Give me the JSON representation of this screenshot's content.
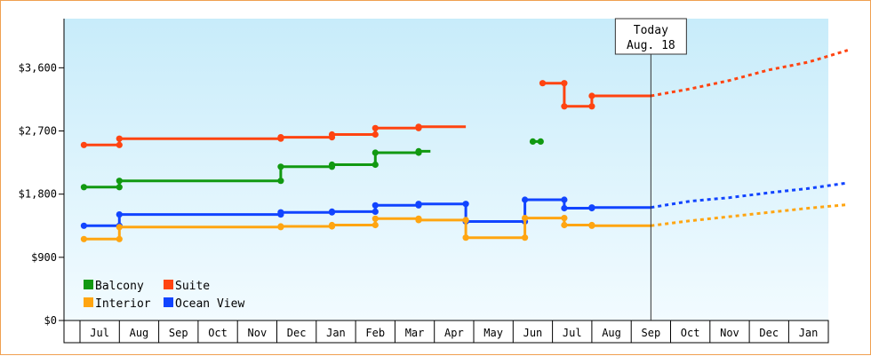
{
  "chart_data": {
    "type": "line",
    "title": "",
    "xlabel": "",
    "ylabel": "",
    "ylim": [
      0,
      4300
    ],
    "y_ticks": [
      0,
      900,
      1800,
      2700,
      3600
    ],
    "y_tick_labels": [
      "$0",
      "$900",
      "$1,800",
      "$2,700",
      "$3,600"
    ],
    "x_tick_labels": [
      "Jul",
      "Aug",
      "Sep",
      "Oct",
      "Nov",
      "Dec",
      "Jan",
      "Feb",
      "Mar",
      "Apr",
      "May",
      "Jun",
      "Jul",
      "Aug",
      "Sep",
      "Oct",
      "Nov",
      "Dec",
      "Jan"
    ],
    "today_marker": {
      "line1": "Today",
      "line2": "Aug. 18",
      "x": 14.0
    },
    "grid": false,
    "legend_position": "bottom-left",
    "series": [
      {
        "name": "Balcony",
        "color": "#119911",
        "points": [
          [
            -0.4,
            1900
          ],
          [
            0.5,
            1900
          ],
          [
            0.5,
            1990
          ],
          [
            4.6,
            1990
          ],
          [
            4.6,
            2190
          ],
          [
            5.9,
            2190
          ],
          [
            5.9,
            2220
          ],
          [
            7.0,
            2220
          ],
          [
            7.0,
            2390
          ],
          [
            8.1,
            2390
          ],
          [
            8.1,
            2410
          ],
          [
            8.4,
            2410
          ]
        ],
        "gaps": [
          [
            11.0,
            2550
          ],
          [
            11.2,
            2550
          ]
        ]
      },
      {
        "name": "Suite",
        "color": "#ff4411",
        "points": [
          [
            -0.4,
            2500
          ],
          [
            0.5,
            2500
          ],
          [
            0.5,
            2590
          ],
          [
            4.6,
            2590
          ],
          [
            4.6,
            2610
          ],
          [
            5.9,
            2610
          ],
          [
            5.9,
            2650
          ],
          [
            7.0,
            2650
          ],
          [
            7.0,
            2740
          ],
          [
            8.1,
            2740
          ],
          [
            8.1,
            2760
          ],
          [
            9.3,
            2760
          ]
        ],
        "segment2": [
          [
            11.25,
            3380
          ],
          [
            11.8,
            3380
          ],
          [
            11.8,
            3050
          ],
          [
            12.5,
            3050
          ],
          [
            12.5,
            3200
          ],
          [
            14.0,
            3200
          ]
        ],
        "forecast": [
          [
            14.0,
            3200
          ],
          [
            15.0,
            3300
          ],
          [
            16.0,
            3420
          ],
          [
            17.0,
            3570
          ],
          [
            18.0,
            3680
          ],
          [
            19.0,
            3850
          ]
        ]
      },
      {
        "name": "Ocean View",
        "color": "#1144ff",
        "points": [
          [
            -0.4,
            1350
          ],
          [
            0.5,
            1350
          ],
          [
            0.5,
            1510
          ],
          [
            4.6,
            1510
          ],
          [
            4.6,
            1540
          ],
          [
            5.9,
            1540
          ],
          [
            5.9,
            1550
          ],
          [
            7.0,
            1550
          ],
          [
            7.0,
            1640
          ],
          [
            8.1,
            1640
          ],
          [
            8.1,
            1660
          ],
          [
            9.3,
            1660
          ],
          [
            9.3,
            1410
          ],
          [
            10.8,
            1410
          ],
          [
            10.8,
            1720
          ],
          [
            11.8,
            1720
          ],
          [
            11.8,
            1600
          ],
          [
            12.5,
            1600
          ],
          [
            12.5,
            1610
          ],
          [
            14.0,
            1610
          ]
        ],
        "forecast": [
          [
            14.0,
            1610
          ],
          [
            15.0,
            1700
          ],
          [
            16.0,
            1750
          ],
          [
            17.0,
            1820
          ],
          [
            18.0,
            1880
          ],
          [
            19.0,
            1960
          ]
        ]
      },
      {
        "name": "Interior",
        "color": "#ffa511",
        "points": [
          [
            -0.4,
            1160
          ],
          [
            0.5,
            1160
          ],
          [
            0.5,
            1330
          ],
          [
            4.6,
            1330
          ],
          [
            4.6,
            1340
          ],
          [
            5.9,
            1340
          ],
          [
            5.9,
            1360
          ],
          [
            7.0,
            1360
          ],
          [
            7.0,
            1450
          ],
          [
            8.1,
            1450
          ],
          [
            8.1,
            1430
          ],
          [
            9.3,
            1430
          ],
          [
            9.3,
            1180
          ],
          [
            10.8,
            1180
          ],
          [
            10.8,
            1460
          ],
          [
            11.8,
            1460
          ],
          [
            11.8,
            1360
          ],
          [
            12.5,
            1360
          ],
          [
            12.5,
            1350
          ],
          [
            14.0,
            1350
          ]
        ],
        "forecast": [
          [
            14.0,
            1350
          ],
          [
            15.0,
            1420
          ],
          [
            16.0,
            1480
          ],
          [
            17.0,
            1540
          ],
          [
            18.0,
            1600
          ],
          [
            19.0,
            1650
          ]
        ]
      }
    ],
    "legend": [
      {
        "label": "Balcony",
        "color": "#119911"
      },
      {
        "label": "Suite",
        "color": "#ff4411"
      },
      {
        "label": "Interior",
        "color": "#ffa511"
      },
      {
        "label": "Ocean View",
        "color": "#1144ff"
      }
    ]
  }
}
